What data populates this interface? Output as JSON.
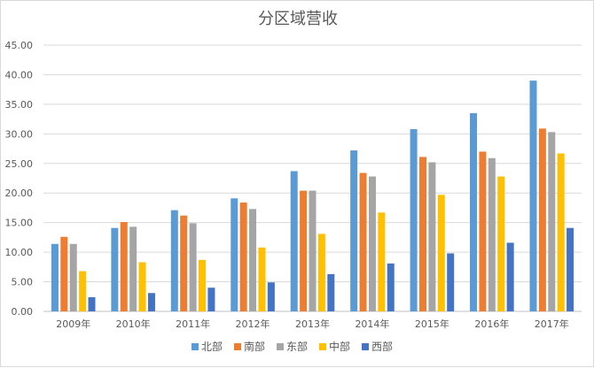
{
  "chart_data": {
    "type": "bar",
    "title": "分区域营收",
    "categories": [
      "2009年",
      "2010年",
      "2011年",
      "2012年",
      "2013年",
      "2014年",
      "2015年",
      "2016年",
      "2017年"
    ],
    "ylim": [
      0,
      45
    ],
    "y_ticks": [
      "0.00",
      "5.00",
      "10.00",
      "15.00",
      "20.00",
      "25.00",
      "30.00",
      "35.00",
      "40.00",
      "45.00"
    ],
    "grid": true,
    "legend_position": "bottom",
    "series": [
      {
        "name": "北部",
        "color": "#5B9BD5",
        "values": [
          11.4,
          14.1,
          17.1,
          19.1,
          23.7,
          27.2,
          30.8,
          33.5,
          39.0
        ]
      },
      {
        "name": "南部",
        "color": "#ED7D31",
        "values": [
          12.6,
          15.1,
          16.2,
          18.4,
          20.4,
          23.4,
          26.1,
          27.0,
          30.9
        ]
      },
      {
        "name": "东部",
        "color": "#A5A5A5",
        "values": [
          11.4,
          14.3,
          14.9,
          17.3,
          20.4,
          22.8,
          25.2,
          25.9,
          30.3
        ]
      },
      {
        "name": "中部",
        "color": "#FFC000",
        "values": [
          6.8,
          8.3,
          8.7,
          10.8,
          13.1,
          16.7,
          19.7,
          22.8,
          26.7
        ]
      },
      {
        "name": "西部",
        "color": "#4472C4",
        "values": [
          2.4,
          3.1,
          4.0,
          4.9,
          6.3,
          8.1,
          9.8,
          11.6,
          14.1
        ]
      }
    ]
  }
}
